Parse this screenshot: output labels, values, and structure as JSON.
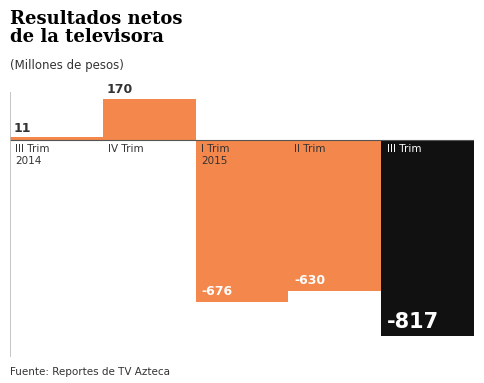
{
  "chart_data": {
    "type": "bar",
    "title": "Resultados netos\nde la televisora",
    "subtitle": "(Millones de pesos)",
    "source": "Fuente: Reportes de TV Azteca",
    "categories": [
      "III Trim\n2014",
      "IV Trim",
      "I Trim\n2015",
      "II Trim",
      "III Trim"
    ],
    "values": [
      11,
      170,
      -676,
      -630,
      -817
    ],
    "colors": [
      "#F4874B",
      "#F4874B",
      "#F4874B",
      "#F4874B",
      "#111111"
    ],
    "ylim": [
      -900,
      200
    ],
    "data_labels": true,
    "tick_labels": false
  }
}
